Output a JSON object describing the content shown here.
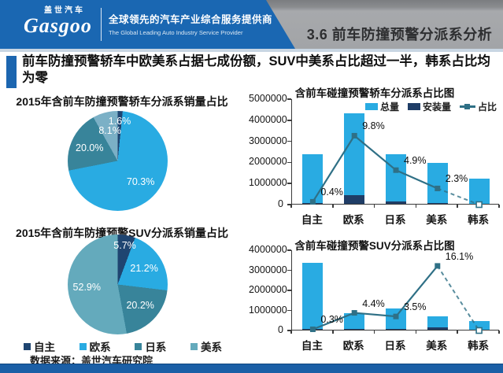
{
  "theme": {
    "header_blue": "#1a67b2",
    "accent_blue": "#1c66b0",
    "footer_blue": "#1b5fa6",
    "header_gray": "#a2a4a7"
  },
  "header": {
    "logo_cn": "盖世汽车",
    "logo_en": "Gasgoo",
    "tagline_cn": "全球领先的汽车产业综合服务提供商",
    "tagline_en": "The Global Leading Auto Industry Service Provider",
    "title": "3.6 前车防撞预警分派系分析"
  },
  "headline": {
    "text": "前车防撞预警轿车中欧美系占据七成份额，SUV中美系占比超过一半，韩系占比均为零"
  },
  "pies_legend": {
    "items": [
      {
        "label": "自主",
        "color": "#1f4571"
      },
      {
        "label": "欧系",
        "color": "#29abe2"
      },
      {
        "label": "日系",
        "color": "#38849a"
      },
      {
        "label": "美系",
        "color": "#64aabc"
      }
    ]
  },
  "source": {
    "text": "数据来源：盖世汽车研究院"
  },
  "chart_data": [
    {
      "id": "pie-sedan",
      "type": "pie",
      "title": "2015年含前车防撞预警轿车分派系销量占比",
      "labels": [
        "自主",
        "欧系",
        "日系",
        "美系"
      ],
      "values": [
        1.6,
        70.3,
        20.0,
        8.1
      ],
      "unit": "%",
      "colors": [
        "#1f4571",
        "#29abe2",
        "#38849a",
        "#7bb0c6"
      ],
      "legend_position": "bottom-shared"
    },
    {
      "id": "pie-suv",
      "type": "pie",
      "title": "2015年含前车防撞预警SUV分派系销量占比",
      "labels": [
        "自主",
        "欧系",
        "日系",
        "美系"
      ],
      "values": [
        5.7,
        21.2,
        20.2,
        52.9
      ],
      "unit": "%",
      "colors": [
        "#1f4571",
        "#29abe2",
        "#38849a",
        "#64aabc"
      ],
      "legend_position": "bottom-shared"
    },
    {
      "id": "combo-sedan",
      "type": "bar-line",
      "title": "含前车碰撞预警轿车分派系占比图",
      "categories": [
        "自主",
        "欧系",
        "日系",
        "美系",
        "韩系"
      ],
      "series": [
        {
          "name": "总量",
          "key": "total",
          "type": "bar",
          "color": "#29abe2",
          "values": [
            2350000,
            4300000,
            2350000,
            1950000,
            1200000
          ]
        },
        {
          "name": "安装量",
          "key": "installed",
          "type": "bar",
          "color": "#1f3d66",
          "values": [
            9000,
            420000,
            115000,
            45000,
            0
          ]
        },
        {
          "name": "占比",
          "key": "ratio",
          "type": "line",
          "color": "#2f7086",
          "unit": "%",
          "values": [
            0.4,
            9.8,
            4.9,
            2.3,
            0
          ],
          "last_segment_dashed": true,
          "last_marker_hollow": true
        }
      ],
      "ylim": [
        0,
        5000000
      ],
      "ytick": 1000000,
      "y2lim": [
        0,
        15
      ],
      "legend": true,
      "grid": false
    },
    {
      "id": "combo-suv",
      "type": "bar-line",
      "title": "含前车碰撞预警SUV分派系占比图",
      "categories": [
        "自主",
        "欧系",
        "日系",
        "美系",
        "韩系"
      ],
      "series": [
        {
          "name": "总量",
          "key": "total",
          "type": "bar",
          "color": "#29abe2",
          "values": [
            3350000,
            820000,
            1050000,
            650000,
            430000
          ]
        },
        {
          "name": "安装量",
          "key": "installed",
          "type": "bar",
          "color": "#1f3d66",
          "values": [
            10000,
            36000,
            37000,
            105000,
            0
          ]
        },
        {
          "name": "占比",
          "key": "ratio",
          "type": "line",
          "color": "#2f7086",
          "unit": "%",
          "values": [
            0.3,
            4.4,
            3.5,
            16.1,
            0
          ],
          "last_segment_dashed": true,
          "last_marker_hollow": true
        }
      ],
      "ylim": [
        0,
        4000000
      ],
      "ytick": 1000000,
      "y2lim": [
        0,
        20
      ],
      "legend": false,
      "grid": false
    }
  ]
}
